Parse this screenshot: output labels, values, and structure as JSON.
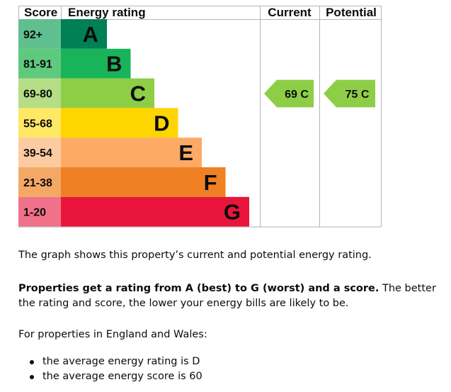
{
  "headers": {
    "score": "Score",
    "rating": "Energy rating",
    "current": "Current",
    "potential": "Potential"
  },
  "bands": [
    {
      "score": "92+",
      "letter": "A",
      "bar": "#008054",
      "cell": "#5fbf8f",
      "letter_color": "#0b0c0c"
    },
    {
      "score": "81-91",
      "letter": "B",
      "bar": "#19b459",
      "cell": "#5fc97e",
      "letter_color": "#0b0c0c"
    },
    {
      "score": "69-80",
      "letter": "C",
      "bar": "#8dce46",
      "cell": "#b6de86",
      "letter_color": "#0b0c0c"
    },
    {
      "score": "55-68",
      "letter": "D",
      "bar": "#ffd500",
      "cell": "#ffe866",
      "letter_color": "#0b0c0c"
    },
    {
      "score": "39-54",
      "letter": "E",
      "bar": "#fcaa65",
      "cell": "#fdcba1",
      "letter_color": "#0b0c0c"
    },
    {
      "score": "21-38",
      "letter": "F",
      "bar": "#ef8023",
      "cell": "#f4a865",
      "letter_color": "#0b0c0c"
    },
    {
      "score": "1-20",
      "letter": "G",
      "bar": "#e9153b",
      "cell": "#f0728a",
      "letter_color": "#0b0c0c"
    }
  ],
  "current": {
    "label": "69 C",
    "score": 69,
    "band": "C",
    "color": "#8dce46"
  },
  "potential": {
    "label": "75 C",
    "score": 75,
    "band": "C",
    "color": "#8dce46"
  },
  "text": {
    "intro": "The graph shows this property’s current and potential energy rating.",
    "rating_bold": "Properties get a rating from A (best) to G (worst) and a score.",
    "rating_rest": " The better the rating and score, the lower your energy bills are likely to be.",
    "region": "For properties in England and Wales:",
    "bullets": [
      "the average energy rating is D",
      "the average energy score is 60"
    ]
  }
}
